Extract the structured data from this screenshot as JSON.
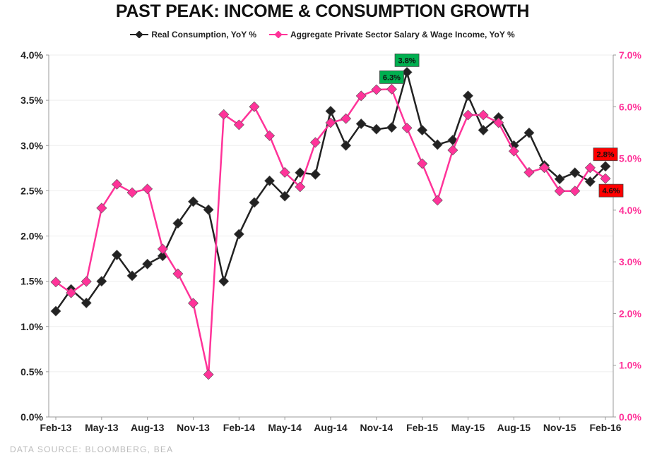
{
  "chart_data": {
    "type": "line",
    "title": "PAST PEAK: INCOME  & CONSUMPTION GROWTH",
    "x": [
      "Feb-13",
      "Mar-13",
      "Apr-13",
      "May-13",
      "Jun-13",
      "Jul-13",
      "Aug-13",
      "Sep-13",
      "Oct-13",
      "Nov-13",
      "Dec-13",
      "Jan-14",
      "Feb-14",
      "Mar-14",
      "Apr-14",
      "May-14",
      "Jun-14",
      "Jul-14",
      "Aug-14",
      "Sep-14",
      "Oct-14",
      "Nov-14",
      "Dec-14",
      "Jan-15",
      "Feb-15",
      "Mar-15",
      "Apr-15",
      "May-15",
      "Jun-15",
      "Jul-15",
      "Aug-15",
      "Sep-15",
      "Oct-15",
      "Nov-15",
      "Dec-15",
      "Jan-16",
      "Feb-16"
    ],
    "x_tick_labels": [
      "Feb-13",
      "May-13",
      "Aug-13",
      "Nov-13",
      "Feb-14",
      "May-14",
      "Aug-14",
      "Nov-14",
      "Feb-15",
      "May-15",
      "Aug-15",
      "Nov-15",
      "Feb-16"
    ],
    "y_left": {
      "range": [
        0,
        4.0
      ],
      "ticks": [
        "0.0%",
        "0.5%",
        "1.0%",
        "1.5%",
        "2.0%",
        "2.5%",
        "3.0%",
        "3.5%",
        "4.0%"
      ],
      "color": "#222222"
    },
    "y_right": {
      "range": [
        0,
        7.0
      ],
      "ticks": [
        "0.0%",
        "1.0%",
        "2.0%",
        "3.0%",
        "4.0%",
        "5.0%",
        "6.0%",
        "7.0%"
      ],
      "color": "#ff3399"
    },
    "grid": true,
    "legend_position": "top",
    "series": [
      {
        "name": "Real Consumption, YoY %",
        "axis": "left",
        "color": "#222222",
        "values": [
          1.17,
          1.41,
          1.26,
          1.5,
          1.79,
          1.56,
          1.69,
          1.78,
          2.14,
          2.38,
          2.29,
          1.5,
          2.02,
          2.37,
          2.61,
          2.44,
          2.7,
          2.68,
          3.38,
          3.0,
          3.24,
          3.18,
          3.2,
          3.81,
          3.17,
          3.01,
          3.06,
          3.55,
          3.17,
          3.31,
          3.0,
          3.14,
          2.78,
          2.63,
          2.7,
          2.6,
          2.77
        ]
      },
      {
        "name": "Aggregate Private Sector Salary & Wage Income, YoY %",
        "axis": "right",
        "color": "#ff3399",
        "values": [
          2.61,
          2.4,
          2.62,
          4.04,
          4.5,
          4.34,
          4.41,
          3.25,
          2.77,
          2.2,
          0.82,
          5.85,
          5.65,
          6.0,
          5.44,
          4.73,
          4.45,
          5.31,
          5.69,
          5.77,
          6.21,
          6.33,
          6.34,
          5.59,
          4.9,
          4.19,
          5.16,
          5.84,
          5.84,
          5.69,
          5.14,
          4.73,
          4.82,
          4.37,
          4.37,
          4.82,
          4.61
        ]
      }
    ],
    "annotations": [
      {
        "text": "6.3%",
        "series": 1,
        "index": 22,
        "color": "#00b050",
        "pos": "above"
      },
      {
        "text": "3.8%",
        "series": 0,
        "index": 23,
        "color": "#00b050",
        "pos": "above"
      },
      {
        "text": "2.8%",
        "series": 0,
        "index": 36,
        "color": "#ff0000",
        "pos": "above"
      },
      {
        "text": "4.6%",
        "series": 1,
        "index": 36,
        "color": "#ff0000",
        "pos": "below"
      }
    ]
  },
  "source": "DATA SOURCE:  BLOOMBERG,  BEA"
}
